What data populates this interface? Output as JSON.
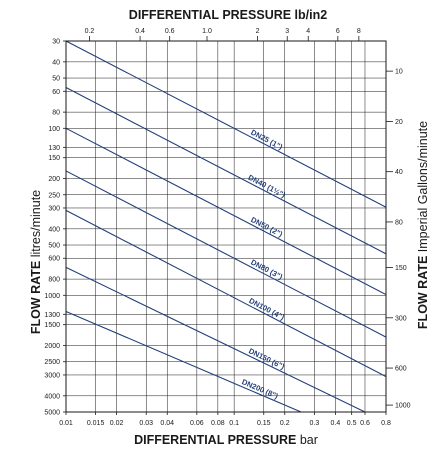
{
  "chart_data": {
    "type": "line",
    "x_scale": "log",
    "y_scale": "log",
    "y_reversed": true,
    "grid": true,
    "legend": "none",
    "series_color": "#243f7a",
    "axes": {
      "bottom": {
        "label_bold": "DIFFERENTIAL PRESSURE",
        "label_unit": "bar",
        "range": [
          0.01,
          0.8
        ],
        "ticks": [
          0.01,
          0.015,
          0.02,
          0.03,
          0.04,
          0.06,
          0.08,
          0.1,
          0.15,
          0.2,
          0.3,
          0.4,
          0.5,
          0.6,
          0.8
        ],
        "tick_labels": [
          "0.01",
          "0.015",
          "0.02",
          "0.03",
          "0.04",
          "0.06",
          "0.08",
          "0.1",
          "0.15",
          "0.2",
          "0.3",
          "0.4",
          "0.5",
          "0.6",
          "0.8"
        ]
      },
      "top": {
        "label": "DIFFERENTIAL PRESSURE lb/in2",
        "ticks": [
          0.2,
          0.4,
          0.6,
          1.0,
          2,
          3,
          4,
          6,
          8
        ],
        "tick_labels": [
          "0.2",
          "0.4",
          "0.6",
          "1.0",
          "2",
          "3",
          "4",
          "6",
          "8"
        ]
      },
      "left": {
        "label_bold": "FLOW RATE",
        "label_unit": "litres/minute",
        "range": [
          30,
          5000
        ],
        "ticks": [
          30,
          40,
          50,
          60,
          80,
          100,
          130,
          150,
          200,
          250,
          300,
          400,
          500,
          600,
          800,
          1000,
          1300,
          1500,
          2000,
          2500,
          3000,
          4000,
          5000
        ],
        "tick_labels": [
          "30",
          "40",
          "50",
          "60",
          "80",
          "100",
          "130",
          "150",
          "200",
          "250",
          "300",
          "400",
          "500",
          "600",
          "800",
          "1000",
          "1300",
          "1500",
          "2000",
          "2500",
          "3000",
          "4000",
          "5000"
        ]
      },
      "right": {
        "label_bold": "FLOW RATE",
        "label_unit": "Imperial Gallons/minute",
        "ticks": [
          10,
          20,
          40,
          80,
          150,
          300,
          600,
          1000
        ],
        "tick_labels": [
          "10",
          "20",
          "40",
          "80",
          "150",
          "300",
          "600",
          "1000"
        ]
      }
    },
    "series": [
      {
        "name": "DN25 (1\")",
        "points": [
          [
            0.01,
            30
          ],
          [
            0.8,
            297
          ]
        ]
      },
      {
        "name": "DN40 (1½\")",
        "points": [
          [
            0.01,
            57
          ],
          [
            0.8,
            565
          ]
        ]
      },
      {
        "name": "DN50 (2\")",
        "points": [
          [
            0.01,
            100
          ],
          [
            0.8,
            990
          ]
        ]
      },
      {
        "name": "DN80 (3\")",
        "points": [
          [
            0.01,
            180
          ],
          [
            0.8,
            1780
          ]
        ]
      },
      {
        "name": "DN100 (4\")",
        "points": [
          [
            0.01,
            310
          ],
          [
            0.8,
            3070
          ]
        ]
      },
      {
        "name": "DN150 (6\")",
        "points": [
          [
            0.01,
            680
          ],
          [
            0.6,
            5000
          ]
        ]
      },
      {
        "name": "DN200 (8\")",
        "points": [
          [
            0.01,
            1250
          ],
          [
            0.25,
            5000
          ]
        ]
      }
    ]
  }
}
